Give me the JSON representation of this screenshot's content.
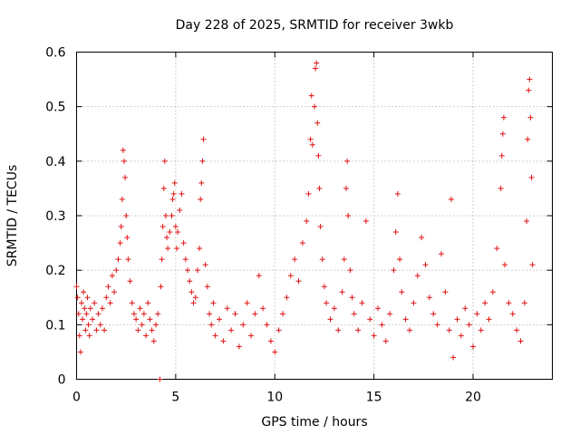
{
  "chart_data": {
    "type": "scatter",
    "title": "Day 228 of 2025, SRMTID for receiver 3wkb",
    "xlabel": "GPS time / hours",
    "ylabel": "SRMTID / TECUs",
    "xlim": [
      0,
      24
    ],
    "ylim": [
      0,
      0.6
    ],
    "xticks": [
      0,
      5,
      10,
      15,
      20
    ],
    "yticks": [
      0,
      0.1,
      0.2,
      0.3,
      0.4,
      0.5,
      0.6
    ],
    "xtick_labels": [
      "0",
      "5",
      "10",
      "15",
      "20"
    ],
    "ytick_labels": [
      "0",
      "0.1",
      "0.2",
      "0.3",
      "0.4",
      "0.5",
      "0.6"
    ],
    "grid": true,
    "marker": "+",
    "series_color": "#e01010",
    "series": [
      {
        "name": "SRMTID",
        "points": [
          [
            0.0,
            0.17
          ],
          [
            0.05,
            0.15
          ],
          [
            0.1,
            0.12
          ],
          [
            0.15,
            0.08
          ],
          [
            0.2,
            0.05
          ],
          [
            0.25,
            0.14
          ],
          [
            0.3,
            0.11
          ],
          [
            0.35,
            0.16
          ],
          [
            0.4,
            0.13
          ],
          [
            0.45,
            0.09
          ],
          [
            0.5,
            0.12
          ],
          [
            0.55,
            0.15
          ],
          [
            0.6,
            0.1
          ],
          [
            0.65,
            0.08
          ],
          [
            0.7,
            0.13
          ],
          [
            0.8,
            0.11
          ],
          [
            0.9,
            0.14
          ],
          [
            1.0,
            0.09
          ],
          [
            1.1,
            0.12
          ],
          [
            1.2,
            0.1
          ],
          [
            1.3,
            0.13
          ],
          [
            1.4,
            0.09
          ],
          [
            1.5,
            0.15
          ],
          [
            1.6,
            0.17
          ],
          [
            1.7,
            0.14
          ],
          [
            1.8,
            0.19
          ],
          [
            1.9,
            0.16
          ],
          [
            2.0,
            0.2
          ],
          [
            2.1,
            0.22
          ],
          [
            2.2,
            0.25
          ],
          [
            2.25,
            0.28
          ],
          [
            2.3,
            0.33
          ],
          [
            2.35,
            0.42
          ],
          [
            2.4,
            0.4
          ],
          [
            2.45,
            0.37
          ],
          [
            2.5,
            0.3
          ],
          [
            2.55,
            0.26
          ],
          [
            2.6,
            0.22
          ],
          [
            2.7,
            0.18
          ],
          [
            2.8,
            0.14
          ],
          [
            2.9,
            0.12
          ],
          [
            3.0,
            0.11
          ],
          [
            3.1,
            0.09
          ],
          [
            3.2,
            0.13
          ],
          [
            3.3,
            0.1
          ],
          [
            3.4,
            0.12
          ],
          [
            3.5,
            0.08
          ],
          [
            3.6,
            0.14
          ],
          [
            3.7,
            0.11
          ],
          [
            3.8,
            0.09
          ],
          [
            3.9,
            0.07
          ],
          [
            4.0,
            0.1
          ],
          [
            4.1,
            0.12
          ],
          [
            4.2,
            0.0
          ],
          [
            4.25,
            0.17
          ],
          [
            4.3,
            0.22
          ],
          [
            4.35,
            0.28
          ],
          [
            4.4,
            0.35
          ],
          [
            4.45,
            0.4
          ],
          [
            4.5,
            0.3
          ],
          [
            4.55,
            0.26
          ],
          [
            4.6,
            0.24
          ],
          [
            4.7,
            0.27
          ],
          [
            4.8,
            0.3
          ],
          [
            4.85,
            0.33
          ],
          [
            4.9,
            0.34
          ],
          [
            4.95,
            0.36
          ],
          [
            5.0,
            0.28
          ],
          [
            5.05,
            0.24
          ],
          [
            5.1,
            0.27
          ],
          [
            5.2,
            0.31
          ],
          [
            5.3,
            0.34
          ],
          [
            5.4,
            0.25
          ],
          [
            5.5,
            0.22
          ],
          [
            5.6,
            0.2
          ],
          [
            5.7,
            0.18
          ],
          [
            5.8,
            0.16
          ],
          [
            5.9,
            0.14
          ],
          [
            6.0,
            0.15
          ],
          [
            6.1,
            0.2
          ],
          [
            6.2,
            0.24
          ],
          [
            6.25,
            0.33
          ],
          [
            6.3,
            0.36
          ],
          [
            6.35,
            0.4
          ],
          [
            6.4,
            0.44
          ],
          [
            6.5,
            0.21
          ],
          [
            6.6,
            0.17
          ],
          [
            6.7,
            0.12
          ],
          [
            6.8,
            0.1
          ],
          [
            6.9,
            0.14
          ],
          [
            7.0,
            0.08
          ],
          [
            7.2,
            0.11
          ],
          [
            7.4,
            0.07
          ],
          [
            7.6,
            0.13
          ],
          [
            7.8,
            0.09
          ],
          [
            8.0,
            0.12
          ],
          [
            8.2,
            0.06
          ],
          [
            8.4,
            0.1
          ],
          [
            8.6,
            0.14
          ],
          [
            8.8,
            0.08
          ],
          [
            9.0,
            0.12
          ],
          [
            9.2,
            0.19
          ],
          [
            9.4,
            0.13
          ],
          [
            9.6,
            0.1
          ],
          [
            9.8,
            0.07
          ],
          [
            10.0,
            0.05
          ],
          [
            10.2,
            0.09
          ],
          [
            10.4,
            0.12
          ],
          [
            10.6,
            0.15
          ],
          [
            10.8,
            0.19
          ],
          [
            11.0,
            0.22
          ],
          [
            11.2,
            0.18
          ],
          [
            11.4,
            0.25
          ],
          [
            11.6,
            0.29
          ],
          [
            11.7,
            0.34
          ],
          [
            11.8,
            0.44
          ],
          [
            11.85,
            0.52
          ],
          [
            11.9,
            0.43
          ],
          [
            12.0,
            0.5
          ],
          [
            12.05,
            0.57
          ],
          [
            12.1,
            0.58
          ],
          [
            12.15,
            0.47
          ],
          [
            12.2,
            0.41
          ],
          [
            12.25,
            0.35
          ],
          [
            12.3,
            0.28
          ],
          [
            12.4,
            0.22
          ],
          [
            12.5,
            0.17
          ],
          [
            12.6,
            0.14
          ],
          [
            12.8,
            0.11
          ],
          [
            13.0,
            0.13
          ],
          [
            13.2,
            0.09
          ],
          [
            13.4,
            0.16
          ],
          [
            13.5,
            0.22
          ],
          [
            13.6,
            0.35
          ],
          [
            13.65,
            0.4
          ],
          [
            13.7,
            0.3
          ],
          [
            13.8,
            0.2
          ],
          [
            13.9,
            0.15
          ],
          [
            14.0,
            0.12
          ],
          [
            14.2,
            0.09
          ],
          [
            14.4,
            0.14
          ],
          [
            14.6,
            0.29
          ],
          [
            14.8,
            0.11
          ],
          [
            15.0,
            0.08
          ],
          [
            15.2,
            0.13
          ],
          [
            15.4,
            0.1
          ],
          [
            15.6,
            0.07
          ],
          [
            15.8,
            0.12
          ],
          [
            16.0,
            0.2
          ],
          [
            16.1,
            0.27
          ],
          [
            16.2,
            0.34
          ],
          [
            16.3,
            0.22
          ],
          [
            16.4,
            0.16
          ],
          [
            16.6,
            0.11
          ],
          [
            16.8,
            0.09
          ],
          [
            17.0,
            0.14
          ],
          [
            17.2,
            0.19
          ],
          [
            17.4,
            0.26
          ],
          [
            17.6,
            0.21
          ],
          [
            17.8,
            0.15
          ],
          [
            18.0,
            0.12
          ],
          [
            18.2,
            0.1
          ],
          [
            18.4,
            0.23
          ],
          [
            18.6,
            0.16
          ],
          [
            18.8,
            0.09
          ],
          [
            18.9,
            0.33
          ],
          [
            19.0,
            0.04
          ],
          [
            19.2,
            0.11
          ],
          [
            19.4,
            0.08
          ],
          [
            19.6,
            0.13
          ],
          [
            19.8,
            0.1
          ],
          [
            20.0,
            0.06
          ],
          [
            20.2,
            0.12
          ],
          [
            20.4,
            0.09
          ],
          [
            20.6,
            0.14
          ],
          [
            20.8,
            0.11
          ],
          [
            21.0,
            0.16
          ],
          [
            21.2,
            0.24
          ],
          [
            21.4,
            0.35
          ],
          [
            21.45,
            0.41
          ],
          [
            21.5,
            0.45
          ],
          [
            21.55,
            0.48
          ],
          [
            21.6,
            0.21
          ],
          [
            21.8,
            0.14
          ],
          [
            22.0,
            0.12
          ],
          [
            22.2,
            0.09
          ],
          [
            22.4,
            0.07
          ],
          [
            22.6,
            0.14
          ],
          [
            22.7,
            0.29
          ],
          [
            22.75,
            0.44
          ],
          [
            22.8,
            0.53
          ],
          [
            22.85,
            0.55
          ],
          [
            22.9,
            0.48
          ],
          [
            22.95,
            0.37
          ],
          [
            23.0,
            0.21
          ]
        ]
      }
    ]
  }
}
